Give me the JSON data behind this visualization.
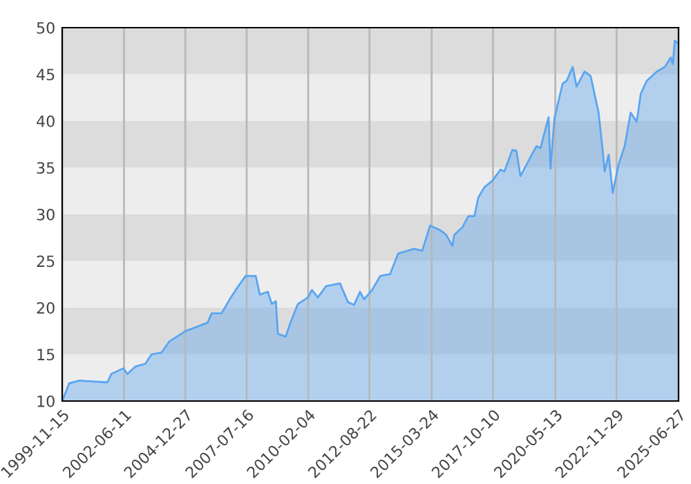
{
  "chart_data": {
    "type": "area",
    "x": [
      "1999-11-15",
      "2000-03",
      "2000-08",
      "2001-02",
      "2001-10",
      "2001-12",
      "2002-06",
      "2002-08",
      "2002-12",
      "2003-05",
      "2003-08",
      "2004-01",
      "2004-05",
      "2005-01",
      "2005-06",
      "2005-12",
      "2006-02",
      "2006-07",
      "2006-11",
      "2007-03",
      "2007-07",
      "2007-12",
      "2008-02",
      "2008-06",
      "2008-08",
      "2008-10",
      "2008-11",
      "2009-03",
      "2009-05",
      "2009-09",
      "2010-02",
      "2010-04",
      "2010-07",
      "2010-11",
      "2011-06",
      "2011-10",
      "2012-01",
      "2012-04",
      "2012-06",
      "2012-10",
      "2013-02",
      "2013-07",
      "2013-11",
      "2014-07",
      "2014-11",
      "2015-03",
      "2015-08",
      "2015-11",
      "2016-02",
      "2016-03",
      "2016-07",
      "2016-10",
      "2017-01",
      "2017-03",
      "2017-06",
      "2017-10",
      "2018-02",
      "2018-04",
      "2018-08",
      "2018-10",
      "2018-12",
      "2019-05",
      "2019-08",
      "2019-10",
      "2020-02",
      "2020-03",
      "2020-05",
      "2020-09",
      "2020-11",
      "2021-02",
      "2021-04",
      "2021-08",
      "2021-11",
      "2022-03",
      "2022-05",
      "2022-06",
      "2022-08",
      "2022-10",
      "2023-01",
      "2023-04",
      "2023-07",
      "2023-10",
      "2023-12",
      "2024-03",
      "2024-08",
      "2024-12",
      "2025-03",
      "2025-04",
      "2025-05",
      "2025-06-27"
    ],
    "series": [
      {
        "color": "#5aa5f0",
        "values": [
          10.0,
          11.9,
          12.2,
          12.1,
          12.0,
          12.9,
          13.5,
          12.9,
          13.7,
          14.0,
          15.0,
          15.2,
          16.4,
          17.5,
          17.9,
          18.4,
          19.4,
          19.4,
          20.9,
          22.2,
          23.4,
          23.4,
          21.4,
          21.7,
          20.4,
          20.7,
          17.2,
          16.9,
          18.2,
          20.4,
          21.1,
          21.9,
          21.1,
          22.3,
          22.6,
          20.6,
          20.3,
          21.7,
          20.9,
          21.9,
          23.4,
          23.6,
          25.8,
          26.3,
          26.1,
          28.8,
          28.3,
          27.8,
          26.6,
          27.8,
          28.6,
          29.8,
          29.8,
          31.8,
          32.9,
          33.6,
          34.8,
          34.6,
          36.9,
          36.8,
          34.1,
          36.1,
          37.3,
          37.1,
          40.4,
          34.9,
          40.3,
          44.0,
          44.3,
          45.8,
          43.7,
          45.3,
          44.8,
          40.9,
          36.9,
          34.6,
          36.4,
          32.3,
          35.4,
          37.3,
          40.9,
          39.9,
          42.9,
          44.3,
          45.3,
          45.8,
          46.8,
          46.1,
          48.6,
          48.3
        ]
      }
    ],
    "xlim": [
      "1999-11-15",
      "2025-06-27"
    ],
    "xticks": [
      "1999-11-15",
      "2002-06-11",
      "2004-12-27",
      "2007-07-16",
      "2010-02-04",
      "2012-08-22",
      "2015-03-24",
      "2017-10-10",
      "2020-05-13",
      "2022-11-29",
      "2025-06-27"
    ],
    "ylim": [
      10,
      50
    ],
    "yticks": [
      10,
      15,
      20,
      25,
      30,
      35,
      40,
      45,
      50
    ],
    "grid": "x",
    "bands": [
      {
        "axis": "y",
        "from": 10,
        "to": 15,
        "color": "#ededed"
      },
      {
        "axis": "y",
        "from": 15,
        "to": 20,
        "color": "#dcdcdc"
      },
      {
        "axis": "y",
        "from": 20,
        "to": 25,
        "color": "#ededed"
      },
      {
        "axis": "y",
        "from": 25,
        "to": 30,
        "color": "#dcdcdc"
      },
      {
        "axis": "y",
        "from": 30,
        "to": 35,
        "color": "#ededed"
      },
      {
        "axis": "y",
        "from": 35,
        "to": 40,
        "color": "#dcdcdc"
      },
      {
        "axis": "y",
        "from": 40,
        "to": 45,
        "color": "#ededed"
      },
      {
        "axis": "y",
        "from": 45,
        "to": 50,
        "color": "#dcdcdc"
      }
    ]
  }
}
